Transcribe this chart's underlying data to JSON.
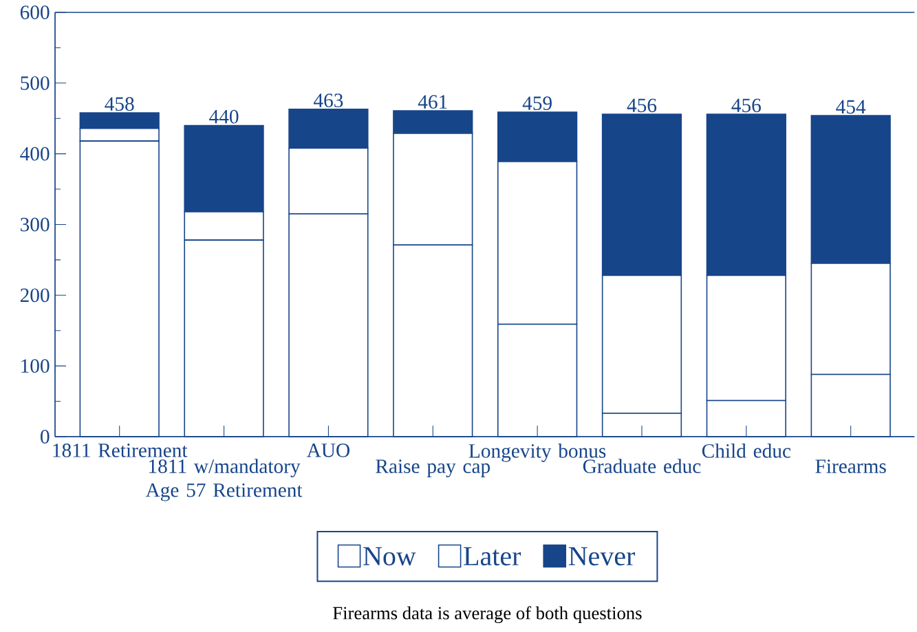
{
  "chart_data": {
    "type": "bar",
    "stacked": true,
    "categories": [
      "1811 Retirement",
      "1811 w/mandatory Age 57 Retirement",
      "AUO",
      "Raise pay cap",
      "Longevity bonus",
      "Graduate educ",
      "Child educ",
      "Firearms"
    ],
    "series": [
      {
        "name": "Now",
        "color": "#ffffff",
        "values": [
          418,
          278,
          315,
          271,
          159,
          33,
          51,
          88
        ]
      },
      {
        "name": "Later",
        "color": "#ffffff",
        "values": [
          18,
          40,
          93,
          158,
          230,
          195,
          177,
          157
        ]
      },
      {
        "name": "Never",
        "color": "#17458a",
        "values": [
          22,
          122,
          55,
          32,
          70,
          228,
          228,
          209
        ]
      }
    ],
    "totals": [
      "458",
      "440",
      "463",
      "461",
      "459",
      "456",
      "456",
      "454"
    ],
    "ylim": [
      0,
      600
    ],
    "yticks": [
      0,
      100,
      200,
      300,
      400,
      500,
      600
    ],
    "legend": "bottom",
    "annotations": [
      "Firearms data is average of both questions"
    ]
  }
}
